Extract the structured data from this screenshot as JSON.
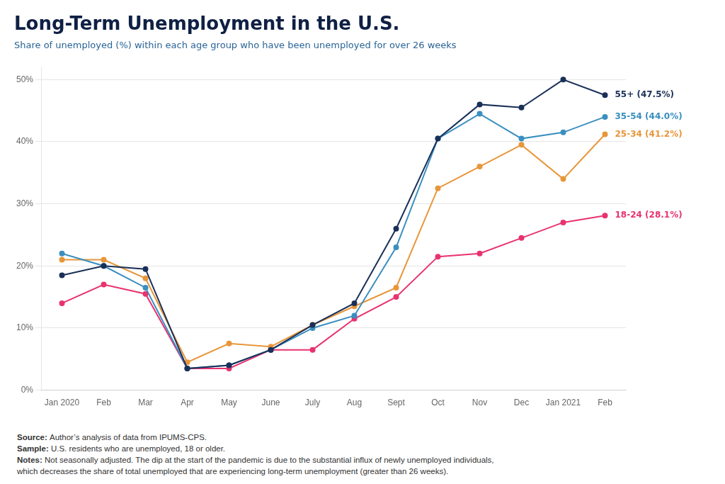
{
  "chart_data": {
    "type": "line",
    "title": "Long-Term Unemployment in the U.S.",
    "subtitle": "Share of unemployed (%) within each age group who have been unemployed for over 26 weeks",
    "categories": [
      "Jan 2020",
      "Feb",
      "Mar",
      "Apr",
      "May",
      "June",
      "July",
      "Aug",
      "Sept",
      "Oct",
      "Nov",
      "Dec",
      "Jan 2021",
      "Feb"
    ],
    "series": [
      {
        "name": "55+ (47.5%)",
        "color": "#1a3058",
        "values": [
          18.5,
          20.0,
          19.5,
          3.5,
          4.0,
          6.5,
          10.5,
          14.0,
          26.0,
          40.5,
          46.0,
          45.5,
          50.0,
          47.5
        ]
      },
      {
        "name": "35-54 (44.0%)",
        "color": "#3a8fc0",
        "values": [
          22.0,
          20.0,
          16.5,
          3.5,
          4.0,
          6.5,
          10.0,
          12.0,
          23.0,
          40.5,
          44.5,
          40.5,
          41.5,
          44.0
        ]
      },
      {
        "name": "25-34 (41.2%)",
        "color": "#e8963a",
        "values": [
          21.0,
          21.0,
          18.0,
          4.5,
          7.5,
          7.0,
          10.5,
          13.5,
          16.5,
          32.5,
          36.0,
          39.5,
          34.0,
          41.2
        ]
      },
      {
        "name": "18-24 (28.1%)",
        "color": "#e8336e",
        "values": [
          14.0,
          17.0,
          15.5,
          3.5,
          3.5,
          6.5,
          6.5,
          11.5,
          15.0,
          21.5,
          22.0,
          24.5,
          27.0,
          28.1
        ]
      }
    ],
    "ylim": [
      0,
      52
    ],
    "yticks": [
      {
        "value": 0,
        "label": "0%"
      },
      {
        "value": 10,
        "label": "10%"
      },
      {
        "value": 20,
        "label": "20%"
      },
      {
        "value": 30,
        "label": "30%"
      },
      {
        "value": 40,
        "label": "40%"
      },
      {
        "value": 50,
        "label": "50%"
      }
    ],
    "grid": true,
    "marker": "circle",
    "notes": [
      {
        "label": "Source:",
        "text": "Author’s analysis of data from IPUMS-CPS."
      },
      {
        "label": "Sample:",
        "text": "U.S. residents who are unemployed, 18 or older."
      },
      {
        "label": "Notes:",
        "text": "Not seasonally adjusted. The dip at the start of the pandemic is due to the substantial influx of newly unemployed individuals,"
      },
      {
        "text": "which decreases the share of total unemployed that are experiencing long-term unemployment (greater than 26 weeks)."
      }
    ]
  }
}
